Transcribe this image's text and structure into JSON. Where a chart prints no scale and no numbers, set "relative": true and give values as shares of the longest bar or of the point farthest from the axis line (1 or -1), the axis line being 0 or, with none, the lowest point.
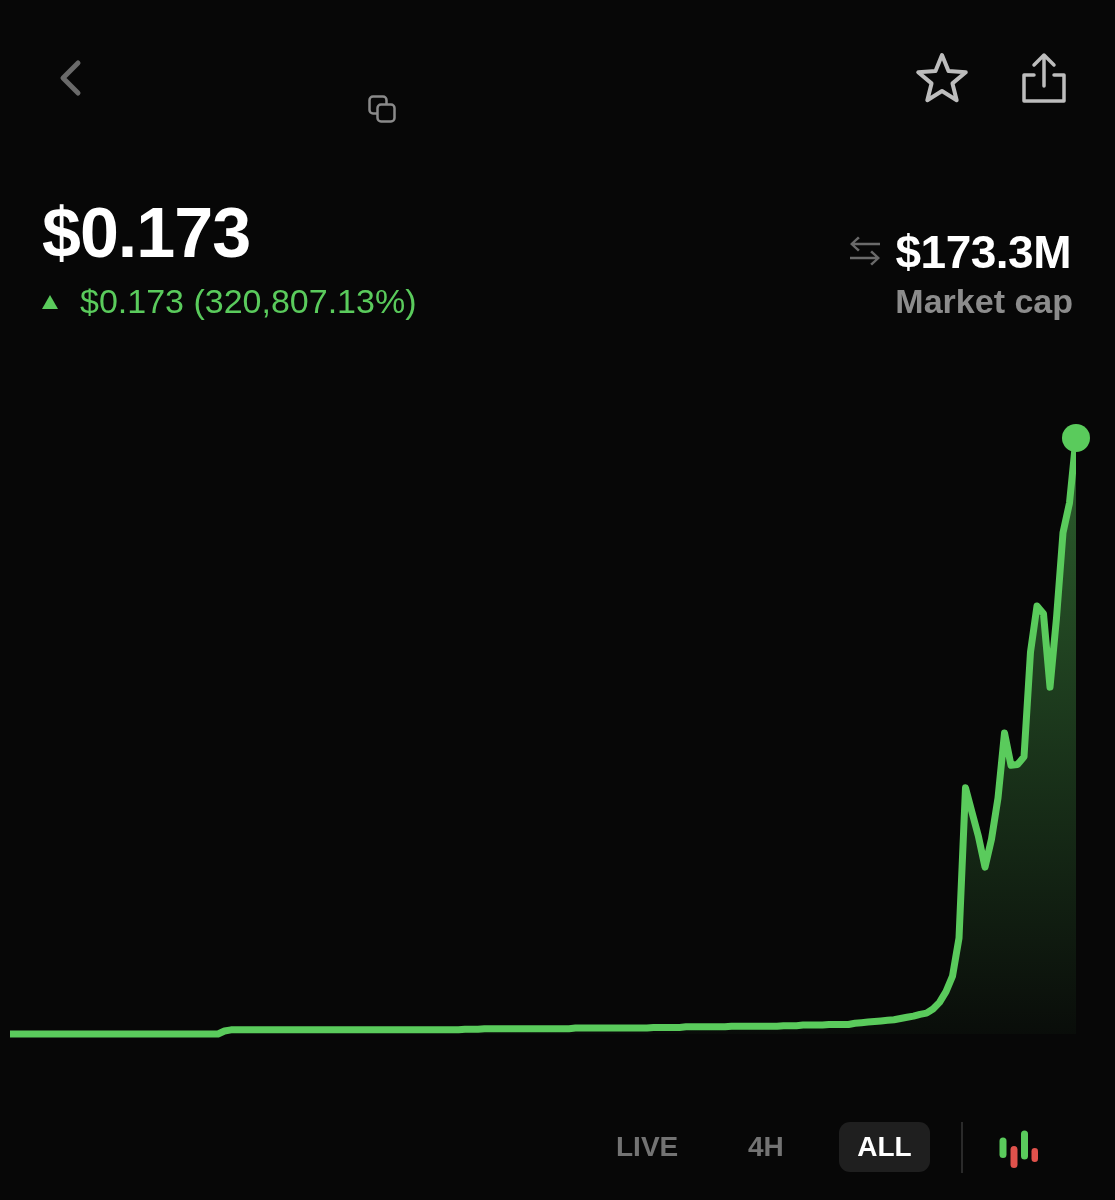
{
  "chart_data": {
    "type": "area",
    "title": "$0.173",
    "subtitle": "$0.173 (320,807.13%)",
    "annotations": [
      "$173.3M",
      "Market cap",
      "LIVE",
      "4H",
      "ALL"
    ],
    "relative": true,
    "categories": [
      null,
      null,
      null,
      null,
      null,
      null,
      null,
      null,
      null,
      null,
      null,
      null,
      null,
      null,
      null,
      null,
      null,
      null,
      null,
      null,
      null,
      null,
      null,
      null,
      null,
      null,
      null,
      null,
      null,
      null,
      null,
      null,
      null,
      null,
      null,
      null,
      null,
      null,
      null,
      null,
      null,
      null,
      null,
      null,
      null,
      null,
      null,
      null,
      null,
      null,
      null,
      null,
      null,
      null,
      null,
      null,
      null,
      null,
      null,
      null,
      null,
      null,
      null,
      null,
      null,
      null,
      null,
      null,
      null,
      null,
      null,
      null,
      null,
      null,
      null,
      null,
      null,
      null,
      null,
      null,
      null,
      null,
      null,
      null,
      null,
      null,
      null,
      null,
      null,
      null,
      null,
      null,
      null,
      null,
      null,
      null,
      null,
      null,
      null,
      null,
      null,
      null,
      null,
      null,
      null,
      null,
      null,
      null,
      null,
      null,
      null,
      null,
      null,
      null,
      null,
      null,
      null,
      null,
      null,
      null,
      null,
      null,
      null,
      null,
      null,
      null,
      null,
      null,
      null,
      null,
      null,
      null,
      null,
      null,
      null,
      null,
      null,
      null,
      null,
      null,
      null,
      null,
      null,
      null,
      null,
      null,
      null,
      null,
      null,
      null,
      null,
      null,
      null,
      null,
      null,
      null,
      null,
      null,
      null,
      null,
      null,
      null,
      null,
      null,
      null
    ],
    "series": [
      {
        "color": "#5acb5c",
        "values": [
          0,
          0,
          0,
          0,
          0,
          0,
          0,
          0,
          0,
          0,
          0,
          0,
          0,
          0,
          0,
          0,
          0,
          0,
          0,
          0,
          0,
          0,
          0,
          0,
          0,
          0,
          0,
          0,
          0,
          0,
          0,
          0,
          0,
          0.005,
          0.007,
          0.007,
          0.007,
          0.007,
          0.007,
          0.007,
          0.007,
          0.007,
          0.007,
          0.007,
          0.007,
          0.007,
          0.007,
          0.007,
          0.007,
          0.007,
          0.007,
          0.007,
          0.007,
          0.007,
          0.007,
          0.007,
          0.007,
          0.007,
          0.007,
          0.007,
          0.007,
          0.007,
          0.007,
          0.007,
          0.007,
          0.007,
          0.007,
          0.007,
          0.007,
          0.007,
          0.008,
          0.008,
          0.008,
          0.009,
          0.009,
          0.009,
          0.009,
          0.009,
          0.009,
          0.009,
          0.009,
          0.009,
          0.009,
          0.009,
          0.009,
          0.009,
          0.009,
          0.01,
          0.01,
          0.01,
          0.01,
          0.01,
          0.01,
          0.01,
          0.01,
          0.01,
          0.01,
          0.01,
          0.01,
          0.011,
          0.011,
          0.011,
          0.011,
          0.011,
          0.012,
          0.012,
          0.012,
          0.012,
          0.012,
          0.012,
          0.012,
          0.013,
          0.013,
          0.013,
          0.013,
          0.013,
          0.013,
          0.013,
          0.013,
          0.014,
          0.014,
          0.014,
          0.015,
          0.015,
          0.015,
          0.015,
          0.016,
          0.016,
          0.016,
          0.016,
          0.018,
          0.019,
          0.02,
          0.021,
          0.022,
          0.023,
          0.024,
          0.026,
          0.028,
          0.03,
          0.033,
          0.035,
          0.042,
          0.053,
          0.071,
          0.097,
          0.161,
          0.413,
          0.372,
          0.331,
          0.28,
          0.327,
          0.396,
          0.505,
          0.451,
          0.452,
          0.465,
          0.641,
          0.718,
          0.705,
          0.582,
          0.698,
          0.841,
          0.891,
          1
        ]
      }
    ]
  }
}
